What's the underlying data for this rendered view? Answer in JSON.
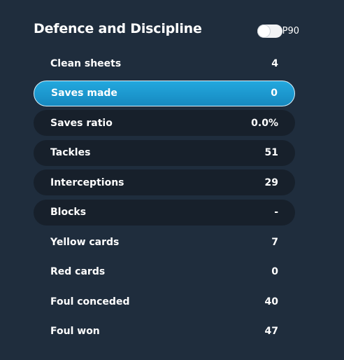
{
  "section": {
    "title": "Defence and Discipline",
    "toggle_label": "P90",
    "toggle_on": false
  },
  "stats": [
    {
      "label": "Clean sheets",
      "value": "4",
      "style": "plain"
    },
    {
      "label": "Saves made",
      "value": "0",
      "style": "active"
    },
    {
      "label": "Saves ratio",
      "value": "0.0%",
      "style": "dark"
    },
    {
      "label": "Tackles",
      "value": "51",
      "style": "dark"
    },
    {
      "label": "Interceptions",
      "value": "29",
      "style": "dark"
    },
    {
      "label": "Blocks",
      "value": "-",
      "style": "dark"
    },
    {
      "label": "Yellow cards",
      "value": "7",
      "style": "plain"
    },
    {
      "label": "Red cards",
      "value": "0",
      "style": "plain"
    },
    {
      "label": "Foul conceded",
      "value": "40",
      "style": "plain"
    },
    {
      "label": "Foul won",
      "value": "47",
      "style": "plain"
    }
  ]
}
